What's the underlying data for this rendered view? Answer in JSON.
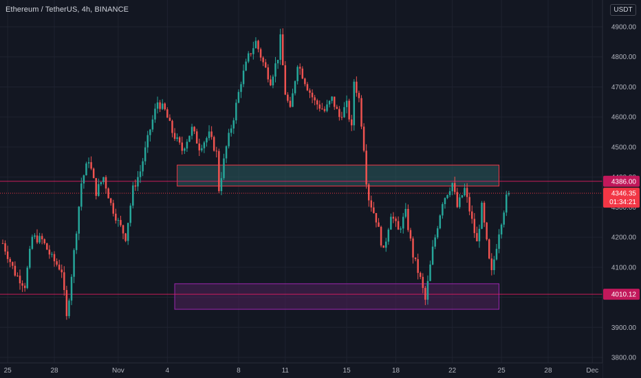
{
  "header": {
    "symbol_title": "Ethereum / TetherUS, 4h, BINANCE",
    "currency_button": "USDT"
  },
  "colors": {
    "background": "#131722",
    "grid": "#1f2330",
    "axis_text": "#b2b5be",
    "up": "#26a69a",
    "down": "#ef5350",
    "level_line": "#e91e63",
    "upper_zone_fill": "#2a5b5e",
    "upper_zone_stroke": "#f23645",
    "lower_zone_fill": "#4a1f55",
    "lower_zone_stroke": "#9c27b0",
    "price_tag": "#f23645",
    "level_tag": "#c2185b"
  },
  "chart_data": {
    "type": "candlestick",
    "title": "Ethereum / TetherUS, 4h, BINANCE",
    "ylim": [
      3780,
      4950
    ],
    "y_ticks": [
      "3800.00",
      "3900.00",
      "4000.00",
      "4100.00",
      "4200.00",
      "4300.00",
      "4400.00",
      "4500.00",
      "4600.00",
      "4700.00",
      "4800.00",
      "4900.00"
    ],
    "x_ticks": [
      "25",
      "28",
      "Nov",
      "4",
      "8",
      "11",
      "15",
      "18",
      "22",
      "25",
      "28",
      "Dec"
    ],
    "x_tick_index": [
      2,
      21,
      47,
      67,
      96,
      115,
      140,
      160,
      183,
      203,
      222,
      240
    ],
    "n_slots": 244,
    "last_price": "4346.35",
    "countdown": "01:34:21",
    "horizontal_levels": [
      {
        "price": 4386.0,
        "label": "4386.00"
      },
      {
        "price": 4010.12,
        "label": "4010.12"
      }
    ],
    "zones": [
      {
        "name": "upper-zone",
        "y_low": 4370,
        "y_high": 4440,
        "x_start_index": 71,
        "x_end_index": 202
      },
      {
        "name": "lower-zone",
        "y_low": 3960,
        "y_high": 4045,
        "x_start_index": 70,
        "x_end_index": 202
      }
    ],
    "segments": [
      [
        0,
        4180,
        -40,
        45
      ],
      [
        5,
        4080,
        30,
        45
      ],
      [
        9,
        4040,
        -50,
        45
      ],
      [
        12,
        4200,
        110,
        55
      ],
      [
        16,
        4190,
        20,
        40
      ],
      [
        20,
        4130,
        -60,
        45
      ],
      [
        24,
        4090,
        40,
        40
      ],
      [
        26,
        3930,
        -160,
        55
      ],
      [
        29,
        4150,
        220,
        55
      ],
      [
        32,
        4380,
        230,
        55
      ],
      [
        35,
        4460,
        80,
        50
      ],
      [
        38,
        4350,
        -110,
        45
      ],
      [
        41,
        4400,
        50,
        45
      ],
      [
        44,
        4310,
        -90,
        45
      ],
      [
        47,
        4250,
        -60,
        40
      ],
      [
        50,
        4200,
        -50,
        40
      ],
      [
        53,
        4360,
        160,
        50
      ],
      [
        56,
        4420,
        60,
        40
      ],
      [
        60,
        4560,
        140,
        50
      ],
      [
        63,
        4650,
        90,
        55
      ],
      [
        66,
        4620,
        -30,
        45
      ],
      [
        69,
        4550,
        -70,
        40
      ],
      [
        73,
        4490,
        -60,
        40
      ],
      [
        77,
        4560,
        70,
        45
      ],
      [
        80,
        4500,
        -60,
        40
      ],
      [
        84,
        4540,
        40,
        40
      ],
      [
        87,
        4480,
        -60,
        40
      ],
      [
        88,
        4360,
        -120,
        50
      ],
      [
        91,
        4500,
        140,
        45
      ],
      [
        94,
        4600,
        100,
        45
      ],
      [
        97,
        4720,
        120,
        50
      ],
      [
        100,
        4800,
        80,
        45
      ],
      [
        103,
        4850,
        50,
        40
      ],
      [
        106,
        4780,
        -70,
        45
      ],
      [
        109,
        4720,
        -60,
        45
      ],
      [
        112,
        4800,
        80,
        45
      ],
      [
        113,
        4860,
        60,
        45
      ],
      [
        115,
        4680,
        -180,
        55
      ],
      [
        117,
        4620,
        -60,
        50
      ],
      [
        120,
        4780,
        160,
        50
      ],
      [
        124,
        4700,
        -80,
        45
      ],
      [
        127,
        4650,
        -50,
        45
      ],
      [
        131,
        4620,
        -30,
        40
      ],
      [
        134,
        4660,
        40,
        40
      ],
      [
        137,
        4600,
        -60,
        40
      ],
      [
        140,
        4640,
        40,
        40
      ],
      [
        142,
        4560,
        -80,
        40
      ],
      [
        143,
        4720,
        160,
        50
      ],
      [
        145,
        4660,
        -60,
        45
      ],
      [
        147,
        4500,
        -160,
        50
      ],
      [
        148,
        4390,
        -110,
        40
      ],
      [
        149,
        4330,
        -60,
        40
      ],
      [
        152,
        4260,
        -70,
        45
      ],
      [
        155,
        4150,
        -110,
        55
      ],
      [
        158,
        4280,
        130,
        55
      ],
      [
        161,
        4220,
        -60,
        45
      ],
      [
        164,
        4280,
        60,
        40
      ],
      [
        167,
        4140,
        -140,
        50
      ],
      [
        170,
        4060,
        -80,
        45
      ],
      [
        172,
        3990,
        -70,
        40
      ],
      [
        175,
        4160,
        170,
        50
      ],
      [
        179,
        4320,
        160,
        50
      ],
      [
        183,
        4380,
        60,
        45
      ],
      [
        185,
        4300,
        -80,
        40
      ],
      [
        188,
        4360,
        60,
        40
      ],
      [
        190,
        4290,
        -70,
        40
      ],
      [
        193,
        4180,
        -110,
        50
      ],
      [
        195,
        4300,
        120,
        45
      ],
      [
        198,
        4120,
        -180,
        50
      ],
      [
        199,
        4080,
        -40,
        40
      ],
      [
        202,
        4220,
        140,
        50
      ],
      [
        205,
        4330,
        110,
        45
      ],
      [
        206,
        4346,
        16,
        25
      ]
    ]
  }
}
